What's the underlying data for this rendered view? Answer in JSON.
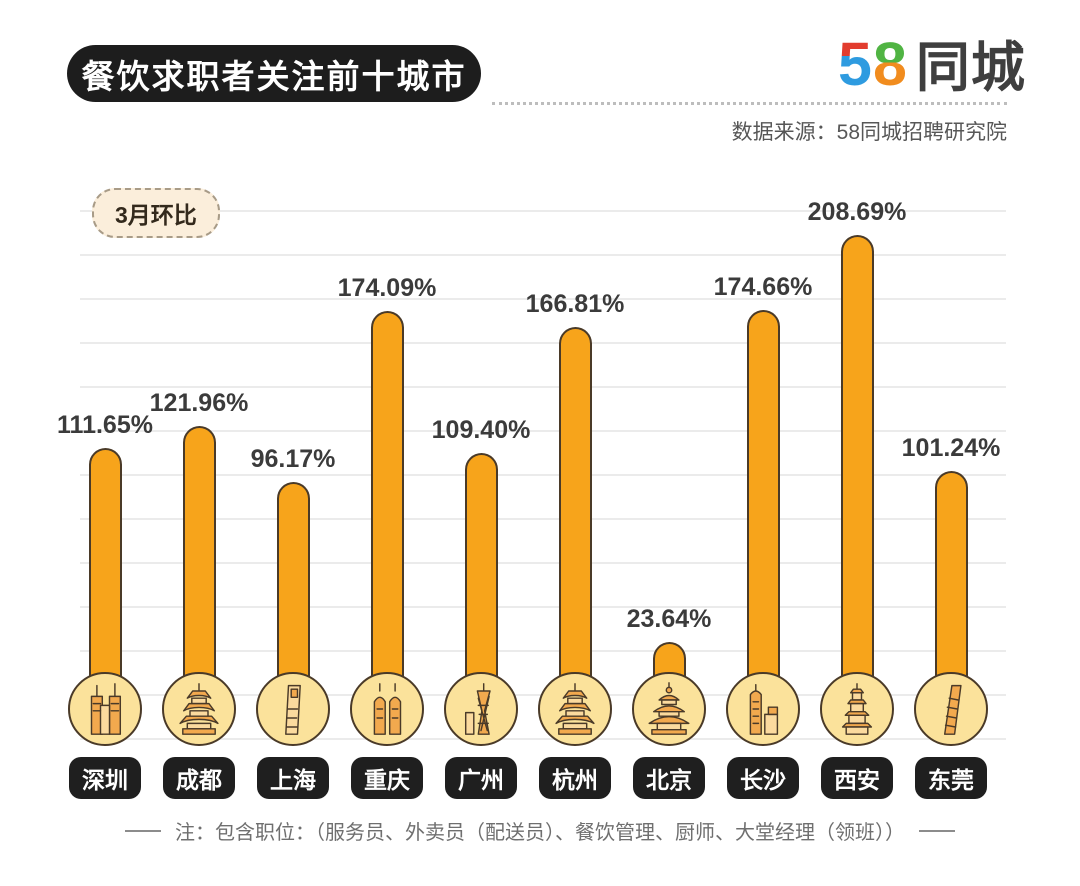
{
  "header": {
    "title": "餐饮求职者关注前十城市",
    "logo": {
      "five": "5",
      "eight": "8",
      "city": "同城",
      "alt": "58同城"
    },
    "source": "数据来源：58同城招聘研究院"
  },
  "badge": {
    "label": "3月环比"
  },
  "chart_data": {
    "type": "bar",
    "title": "餐饮求职者关注前十城市",
    "series_label": "3月环比",
    "categories": [
      "深圳",
      "成都",
      "上海",
      "重庆",
      "广州",
      "杭州",
      "北京",
      "长沙",
      "西安",
      "东莞"
    ],
    "values": [
      111.65,
      121.96,
      96.17,
      174.09,
      109.4,
      166.81,
      23.64,
      174.66,
      208.69,
      101.24
    ],
    "value_labels": [
      "111.65%",
      "121.96%",
      "96.17%",
      "174.09%",
      "109.40%",
      "166.81%",
      "23.64%",
      "174.66%",
      "208.69%",
      "101.24%"
    ],
    "unit": "%",
    "ylim": [
      0,
      220
    ],
    "gridline_step_pct": 20,
    "grid": true,
    "legend_position": "top-left-badge",
    "icons": [
      {
        "name": "shenzhen-landmark-icon",
        "glyph": "twin-towers"
      },
      {
        "name": "chengdu-landmark-icon",
        "glyph": "pagoda"
      },
      {
        "name": "shanghai-landmark-icon",
        "glyph": "slab-tower"
      },
      {
        "name": "chongqing-landmark-icon",
        "glyph": "twin-spires"
      },
      {
        "name": "guangzhou-landmark-icon",
        "glyph": "lattice-tower"
      },
      {
        "name": "hangzhou-landmark-icon",
        "glyph": "pagoda"
      },
      {
        "name": "beijing-landmark-icon",
        "glyph": "temple"
      },
      {
        "name": "changsha-landmark-icon",
        "glyph": "tower-complex"
      },
      {
        "name": "xian-landmark-icon",
        "glyph": "stepped-pagoda"
      },
      {
        "name": "dongguan-landmark-icon",
        "glyph": "spiral-tower"
      }
    ]
  },
  "footer": {
    "note": "注：包含职位：（服务员、外卖员（配送员）、餐饮管理、厨师、大堂经理（领班））"
  },
  "colors": {
    "bar_fill": "#F7A41B",
    "outline": "#4A3A28",
    "circle_fill": "#FBE29B",
    "label_pill_bg": "#1F1F1F",
    "title_bg": "#1D1D1D",
    "badge_bg": "#FBEEDB",
    "badge_border": "#A89B87",
    "grid_line": "#EBEBEB",
    "value_text": "#3B3B3B",
    "logo_red": "#E23C2E",
    "logo_blue": "#2E9BE0",
    "logo_green": "#50B443",
    "logo_orange": "#F18C1E"
  }
}
